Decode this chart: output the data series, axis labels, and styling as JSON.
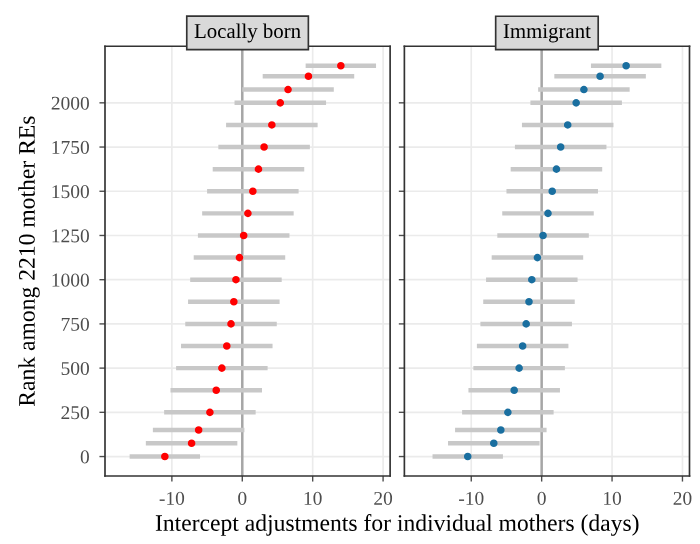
{
  "chart_data": [
    {
      "type": "scatter",
      "title": "Locally born",
      "ylabel": "Rank among 2210 mother REs",
      "xlabel": "Intercept adjustments for individual mothers (days)",
      "marker": "circle",
      "grid": true,
      "series": [
        {
          "color": "#ff0000",
          "x": [
            -11,
            -7.2,
            -6.2,
            -4.6,
            -3.7,
            -2.9,
            -2.2,
            -1.6,
            -1.2,
            -0.9,
            -0.4,
            0.2,
            0.8,
            1.5,
            2.3,
            3.1,
            4.2,
            5.4,
            6.5,
            9.4,
            14
          ],
          "values": [
            0,
            75,
            150,
            250,
            375,
            500,
            625,
            750,
            875,
            1000,
            1125,
            1250,
            1375,
            1500,
            1625,
            1750,
            1875,
            2000,
            2075,
            2150,
            2210
          ],
          "xerrors": [
            5,
            6.5,
            6.5,
            6.5,
            6.5,
            6.5,
            6.5,
            6.5,
            6.5,
            6.5,
            6.5,
            6.5,
            6.5,
            6.5,
            6.5,
            6.5,
            6.5,
            6.5,
            6.5,
            6.5,
            5
          ]
        }
      ],
      "xlim": [
        -19.5,
        21
      ],
      "xticks": [
        -10,
        0,
        10,
        20
      ],
      "ylim": [
        -110,
        2320
      ],
      "yticks": [
        0,
        250,
        500,
        750,
        1000,
        1250,
        1500,
        1750,
        2000
      ],
      "ref_lines": [
        {
          "axis": "x",
          "value": 0,
          "color": "#a6a6a6"
        }
      ]
    },
    {
      "type": "scatter",
      "title": "Immigrant",
      "marker": "circle",
      "grid": true,
      "tick_labels": "x",
      "series": [
        {
          "color": "#1a6fa0",
          "x": [
            -10.5,
            -6.8,
            -5.8,
            -4.8,
            -3.9,
            -3.2,
            -2.7,
            -2.2,
            -1.8,
            -1.4,
            -0.6,
            0.2,
            0.9,
            1.5,
            2.1,
            2.7,
            3.7,
            4.9,
            6,
            8.3,
            12
          ],
          "values": [
            0,
            75,
            150,
            250,
            375,
            500,
            625,
            750,
            875,
            1000,
            1125,
            1250,
            1375,
            1500,
            1625,
            1750,
            1875,
            2000,
            2075,
            2150,
            2210
          ],
          "xerrors": [
            5,
            6.5,
            6.5,
            6.5,
            6.5,
            6.5,
            6.5,
            6.5,
            6.5,
            6.5,
            6.5,
            6.5,
            6.5,
            6.5,
            6.5,
            6.5,
            6.5,
            6.5,
            6.5,
            6.5,
            5
          ]
        }
      ],
      "xlim": [
        -19.5,
        21
      ],
      "xticks": [
        -10,
        0,
        10,
        20
      ],
      "ylim": [
        -110,
        2320
      ],
      "yticks": [
        0,
        250,
        500,
        750,
        1000,
        1250,
        1500,
        1750,
        2000
      ],
      "ref_lines": [
        {
          "axis": "x",
          "value": 0,
          "color": "#a6a6a6"
        }
      ]
    }
  ]
}
